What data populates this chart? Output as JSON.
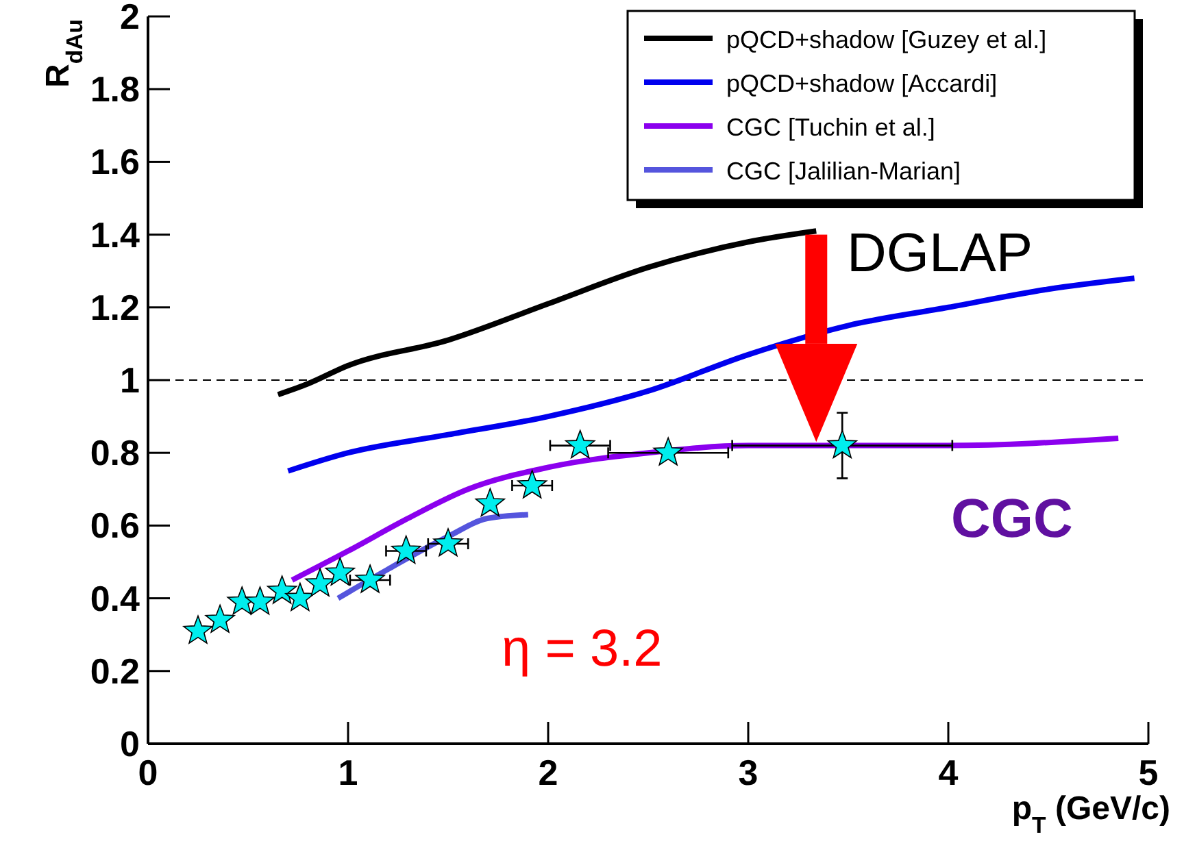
{
  "chart_data": {
    "type": "line",
    "xlabel": "p$_{T}$ (GeV/c)",
    "ylabel": "R$_{dAu}$",
    "xlim": [
      0,
      5
    ],
    "xticks": [
      0,
      1,
      2,
      3,
      4,
      5
    ],
    "ylim": [
      0,
      2
    ],
    "yticks": [
      0,
      0.2,
      0.4,
      0.6,
      0.8,
      1,
      1.2,
      1.4,
      1.6,
      1.8,
      2
    ],
    "legend": "top right",
    "grid": false,
    "marker": "none",
    "line_style": "solid",
    "ref_lines": [
      {
        "axis": "y",
        "value": 1,
        "color": "#000000",
        "line_style": "dashed"
      }
    ],
    "annotations": [
      "DGLAP",
      "CGC",
      "η = 3.2"
    ],
    "series": [
      {
        "name": "pQCD+shadow [Guzey et al.]",
        "color": "#000000",
        "x": [
          0.65,
          0.8,
          1.0,
          1.5,
          2.0,
          2.5,
          3.0,
          3.34
        ],
        "values": [
          0.96,
          0.99,
          1.04,
          1.11,
          1.21,
          1.31,
          1.38,
          1.41
        ]
      },
      {
        "name": "pQCD+shadow [Accardi]",
        "color": "#0000ee",
        "x": [
          0.7,
          1.0,
          1.5,
          2.0,
          2.5,
          3.0,
          3.5,
          4.0,
          4.5,
          4.93
        ],
        "values": [
          0.75,
          0.8,
          0.85,
          0.9,
          0.97,
          1.07,
          1.15,
          1.2,
          1.25,
          1.28
        ]
      },
      {
        "name": "CGC [Tuchin et al.]",
        "color": "#8b00ee",
        "x": [
          0.72,
          1.0,
          1.3,
          1.6,
          2.0,
          2.5,
          3.0,
          4.0,
          4.85
        ],
        "values": [
          0.45,
          0.53,
          0.62,
          0.7,
          0.76,
          0.8,
          0.82,
          0.82,
          0.84
        ]
      },
      {
        "name": "CGC [Jalilian-Marian]",
        "color": "#5555dd",
        "x": [
          0.95,
          1.2,
          1.5,
          1.7,
          1.9
        ],
        "values": [
          0.4,
          0.48,
          0.57,
          0.62,
          0.63
        ]
      },
      {
        "type": "scatter",
        "color": "#00eeee",
        "marker": "star",
        "x": [
          0.25,
          0.36,
          0.47,
          0.56,
          0.67,
          0.76,
          0.86,
          0.96,
          1.11,
          1.29,
          1.5,
          1.71,
          1.92,
          2.16,
          2.6,
          3.47
        ],
        "values": [
          0.31,
          0.34,
          0.39,
          0.39,
          0.42,
          0.4,
          0.44,
          0.47,
          0.45,
          0.53,
          0.55,
          0.66,
          0.71,
          0.82,
          0.8,
          0.82
        ],
        "errors": [
          null,
          null,
          null,
          null,
          null,
          null,
          null,
          null,
          null,
          null,
          null,
          null,
          null,
          null,
          null,
          0.09
        ],
        "xerrors": [
          null,
          null,
          null,
          null,
          null,
          null,
          null,
          null,
          0.1,
          0.1,
          0.1,
          null,
          0.1,
          0.15,
          0.3,
          0.55
        ]
      }
    ]
  }
}
